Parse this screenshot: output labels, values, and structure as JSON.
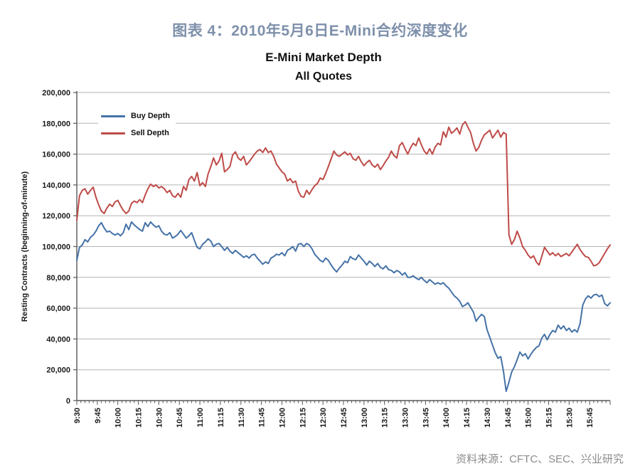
{
  "page": {
    "title": "图表 4：2010年5月6日E-Mini合约深度变化",
    "source": "资料来源：CFTC、SEC、兴业研究"
  },
  "chart": {
    "title_line1": "E-Mini Market Depth",
    "title_line2": "All Quotes",
    "legend": {
      "buy": "Buy Depth",
      "sell": "Sell Depth"
    },
    "colors": {
      "buy": "#4572A7",
      "sell": "#BE4B48",
      "grid": "#B3B3B3",
      "axis": "#595959",
      "tick_text": "#1A1A1A",
      "page_title": "#7E90AB",
      "source_text": "#8C8C8C"
    }
  },
  "chart_data": {
    "type": "line",
    "title": "E-Mini Market Depth",
    "subtitle": "All Quotes",
    "xlabel": "",
    "ylabel": "Resting Contracts (beginning-of-minute)",
    "ylim": [
      0,
      200000
    ],
    "ytick_step": 20000,
    "ytick_labels": [
      "0",
      "20,000",
      "40,000",
      "60,000",
      "80,000",
      "100,000",
      "120,000",
      "140,000",
      "160,000",
      "180,000",
      "200,000"
    ],
    "grid": "horizontal",
    "legend_position": "upper-left",
    "x_axis": {
      "start_time": "9:30",
      "end_time": "16:00",
      "total_minutes": 390,
      "minutes_per_point": 2,
      "major_tick_interval_min": 15,
      "minor_tick_interval_min": 3,
      "tick_labels": [
        "9:30",
        "9:45",
        "10:00",
        "10:15",
        "10:30",
        "10:45",
        "11:00",
        "11:15",
        "11:30",
        "11:45",
        "12:00",
        "12:15",
        "12:30",
        "12:45",
        "13:00",
        "13:15",
        "13:30",
        "13:45",
        "14:00",
        "14:15",
        "14:30",
        "14:45",
        "15:00",
        "15:15",
        "15:30",
        "15:45"
      ]
    },
    "series": [
      {
        "name": "Buy Depth",
        "color": "#4572A7",
        "values": [
          91000,
          99500,
          101000,
          104500,
          103000,
          106000,
          107500,
          110000,
          113500,
          115500,
          112000,
          109500,
          110000,
          108500,
          107500,
          108500,
          107000,
          109000,
          114500,
          111000,
          116000,
          114000,
          112500,
          111000,
          110000,
          115500,
          113000,
          116000,
          114000,
          112500,
          113500,
          110000,
          108000,
          107500,
          109000,
          105500,
          106500,
          108000,
          110500,
          108000,
          105500,
          107000,
          109000,
          104000,
          99500,
          98500,
          101500,
          103000,
          105000,
          103500,
          100000,
          101500,
          102000,
          100000,
          97500,
          99500,
          97000,
          95500,
          97500,
          96000,
          94500,
          93000,
          94000,
          92500,
          94500,
          95000,
          92500,
          90500,
          88500,
          90000,
          89000,
          92500,
          93500,
          95000,
          94500,
          96000,
          94000,
          97500,
          98500,
          100000,
          97000,
          101500,
          102000,
          100000,
          102000,
          101000,
          98500,
          95000,
          93000,
          91000,
          90000,
          92500,
          91000,
          88000,
          85500,
          83500,
          86000,
          88000,
          90500,
          89500,
          93500,
          92000,
          91500,
          94500,
          92500,
          90500,
          88000,
          90500,
          89000,
          87000,
          89000,
          86500,
          85500,
          87500,
          85000,
          84500,
          83000,
          84500,
          83500,
          81500,
          83000,
          80000,
          80000,
          81000,
          79500,
          78500,
          80000,
          78000,
          76500,
          78500,
          77000,
          75500,
          76500,
          75500,
          76500,
          74500,
          73000,
          70500,
          68000,
          66500,
          64500,
          61000,
          62000,
          63500,
          60500,
          57500,
          51500,
          54000,
          56000,
          54500,
          46000,
          41000,
          36000,
          31000,
          27500,
          28500,
          19000,
          6000,
          12000,
          18500,
          22000,
          26500,
          31500,
          29000,
          30500,
          27000,
          30000,
          32500,
          34500,
          35500,
          40500,
          43000,
          39500,
          43000,
          45500,
          44500,
          49000,
          46500,
          48500,
          45500,
          47000,
          44500,
          46000,
          44500,
          50000,
          62000,
          66000,
          68000,
          66500,
          68500,
          69000,
          67500,
          68500,
          63000,
          61500,
          63500
        ]
      },
      {
        "name": "Sell Depth",
        "color": "#BE4B48",
        "values": [
          117000,
          133000,
          136500,
          137500,
          134000,
          136500,
          138500,
          132000,
          127000,
          123000,
          121500,
          125000,
          127500,
          126000,
          129000,
          130000,
          126500,
          123500,
          121500,
          123000,
          128000,
          129500,
          128500,
          130500,
          128500,
          133500,
          137500,
          140500,
          139000,
          140000,
          138000,
          139000,
          137500,
          135000,
          136500,
          133000,
          132000,
          134500,
          132000,
          139000,
          136500,
          143500,
          145500,
          142500,
          148000,
          139500,
          141500,
          139000,
          147000,
          152000,
          157500,
          153000,
          155500,
          160500,
          148500,
          150000,
          152000,
          159500,
          161500,
          157500,
          156000,
          158500,
          153000,
          155000,
          157500,
          160000,
          162000,
          163000,
          161000,
          164000,
          161000,
          162000,
          158500,
          153500,
          151000,
          148500,
          147000,
          142500,
          144000,
          141500,
          142500,
          136000,
          132500,
          132000,
          136500,
          134000,
          137000,
          139500,
          141000,
          144500,
          143500,
          147500,
          152000,
          157000,
          162000,
          159500,
          158500,
          160000,
          161500,
          159500,
          160500,
          157000,
          156000,
          158500,
          155000,
          152500,
          154500,
          156000,
          153000,
          151500,
          153500,
          150000,
          152500,
          155500,
          158000,
          162000,
          159000,
          157500,
          165500,
          167500,
          163500,
          160000,
          164000,
          167000,
          165500,
          170500,
          166000,
          162000,
          160000,
          163500,
          160000,
          164500,
          167000,
          166000,
          174500,
          171000,
          177500,
          173500,
          175000,
          177000,
          173000,
          179000,
          181000,
          177500,
          174000,
          167000,
          162000,
          164500,
          169000,
          172500,
          174000,
          175500,
          170500,
          173000,
          175500,
          171000,
          174000,
          173000,
          107500,
          101500,
          104500,
          110000,
          105500,
          100000,
          97500,
          94500,
          92500,
          94000,
          90000,
          88000,
          93500,
          99500,
          97000,
          94500,
          96000,
          94000,
          95500,
          93500,
          94500,
          95500,
          94000,
          96500,
          99000,
          101500,
          98000,
          95500,
          93500,
          93000,
          90500,
          87500,
          88000,
          89500,
          92500,
          95500,
          98500,
          101000
        ]
      }
    ]
  }
}
